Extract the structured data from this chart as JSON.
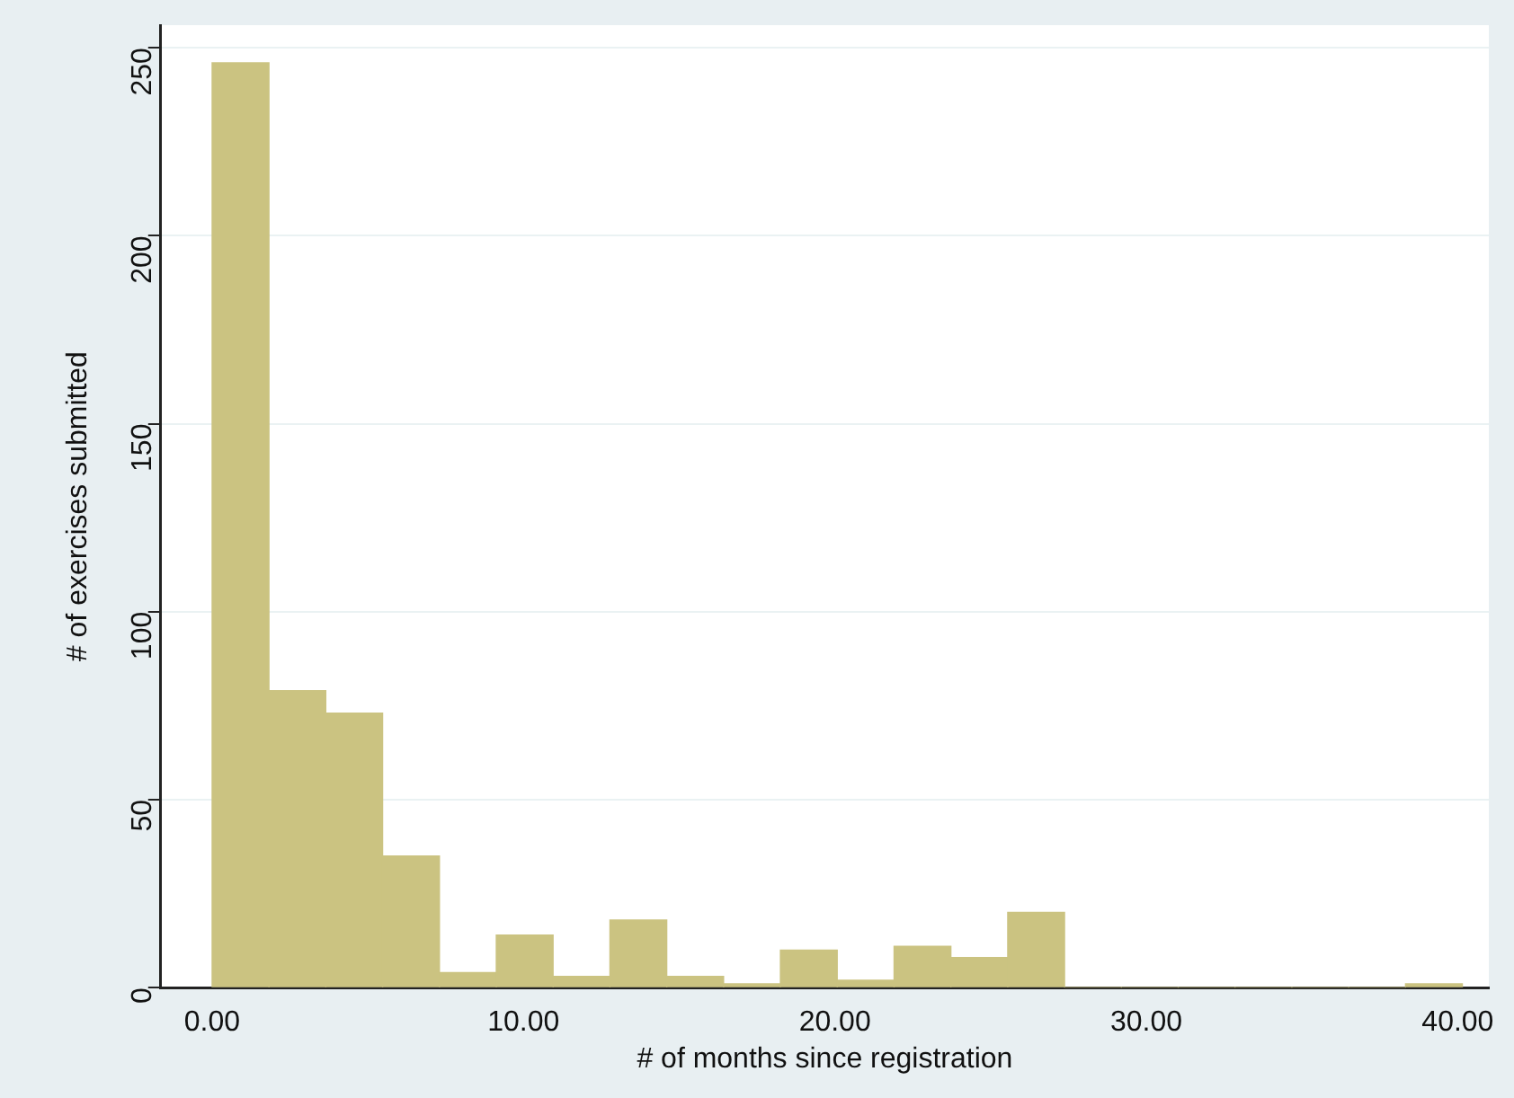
{
  "chart_data": {
    "type": "histogram",
    "xlabel": "# of months since registration",
    "ylabel": "# of exercises submitted",
    "bins": [
      0,
      1.825,
      3.65,
      5.475,
      7.3,
      9.125,
      10.95,
      12.775,
      14.6,
      16.425,
      18.25,
      20.075,
      21.9,
      23.725,
      25.55,
      27.375,
      29.2,
      31.025,
      32.85,
      34.675,
      36.5,
      38.325,
      40.15
    ],
    "values": [
      246,
      79,
      73,
      35,
      4,
      14,
      3,
      18,
      3,
      1,
      10,
      2,
      11,
      8,
      20,
      0,
      0,
      0,
      0,
      0,
      0,
      1
    ],
    "color": "#cbc381",
    "xlim": [
      -1.65,
      41
    ],
    "xticks": [
      {
        "value": 0,
        "label": "0.00"
      },
      {
        "value": 10,
        "label": "10.00"
      },
      {
        "value": 20,
        "label": "20.00"
      },
      {
        "value": 30,
        "label": "30.00"
      },
      {
        "value": 40,
        "label": "40.00"
      }
    ],
    "ylim": [
      0,
      256
    ],
    "yticks": [
      0,
      50,
      100,
      150,
      200,
      250
    ],
    "grid": "y",
    "legend": false
  }
}
